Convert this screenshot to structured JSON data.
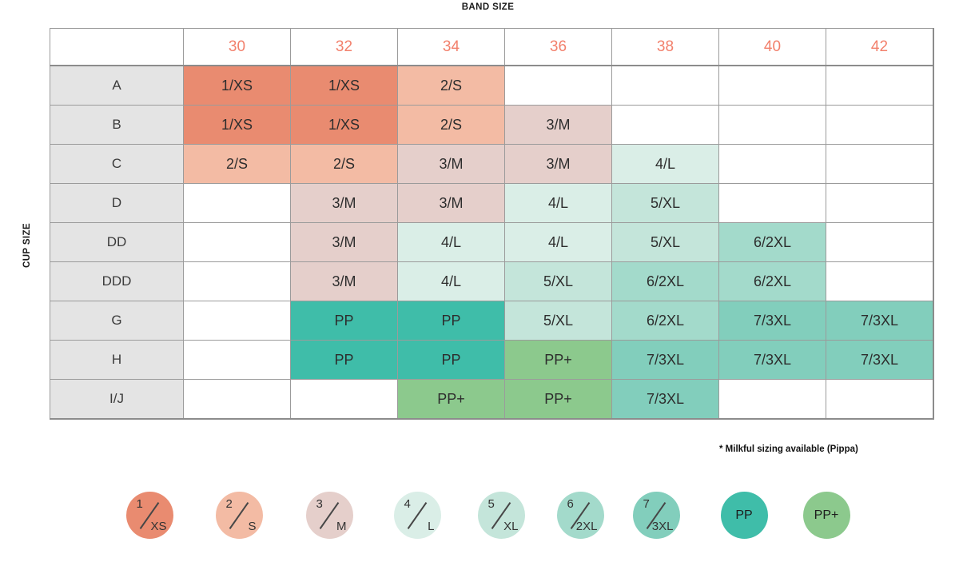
{
  "chart_data": {
    "type": "heatmap",
    "title": "BAND SIZE",
    "xlabel": "BAND SIZE",
    "ylabel": "CUP SIZE",
    "x_categories": [
      "30",
      "32",
      "34",
      "36",
      "38",
      "40",
      "42"
    ],
    "y_categories": [
      "A",
      "B",
      "C",
      "D",
      "DD",
      "DDD",
      "G",
      "H",
      "I/J"
    ],
    "cells": [
      [
        "1/XS",
        "1/XS",
        "2/S",
        "",
        "",
        "",
        ""
      ],
      [
        "1/XS",
        "1/XS",
        "2/S",
        "3/M",
        "",
        "",
        ""
      ],
      [
        "2/S",
        "2/S",
        "3/M",
        "3/M",
        "4/L",
        "",
        ""
      ],
      [
        "",
        "3/M",
        "3/M",
        "4/L",
        "5/XL",
        "",
        ""
      ],
      [
        "",
        "3/M",
        "4/L",
        "4/L",
        "5/XL",
        "6/2XL",
        ""
      ],
      [
        "",
        "3/M",
        "4/L",
        "5/XL",
        "6/2XL",
        "6/2XL",
        ""
      ],
      [
        "",
        "PP",
        "PP",
        "5/XL",
        "6/2XL",
        "7/3XL",
        "7/3XL"
      ],
      [
        "",
        "PP",
        "PP",
        "PP+",
        "7/3XL",
        "7/3XL",
        "7/3XL"
      ],
      [
        "",
        "",
        "PP+",
        "PP+",
        "7/3XL",
        "",
        ""
      ]
    ],
    "palette": {
      "1/XS": "#E98B70",
      "2/S": "#F3BBA4",
      "3/M": "#E5CFCB",
      "4/L": "#DAEEE7",
      "5/XL": "#C4E5DA",
      "6/2XL": "#A3DACB",
      "7/3XL": "#82CEBC",
      "PP": "#3FBDA9",
      "PP+": "#8CC98D"
    },
    "legend": [
      {
        "key": "1/XS",
        "top": "1",
        "bottom": "XS"
      },
      {
        "key": "2/S",
        "top": "2",
        "bottom": "S"
      },
      {
        "key": "3/M",
        "top": "3",
        "bottom": "M"
      },
      {
        "key": "4/L",
        "top": "4",
        "bottom": "L"
      },
      {
        "key": "5/XL",
        "top": "5",
        "bottom": "XL"
      },
      {
        "key": "6/2XL",
        "top": "6",
        "bottom": "2XL"
      },
      {
        "key": "7/3XL",
        "top": "7",
        "bottom": "3XL"
      },
      {
        "key": "PP",
        "text": "PP"
      },
      {
        "key": "PP+",
        "text": "PP+"
      }
    ],
    "note": "* Milkful sizing available (Pippa)",
    "header_text_color": "#F2806C",
    "row_label_bg": "#E4E4E4",
    "grid_line_color": "#9B9B9B"
  }
}
